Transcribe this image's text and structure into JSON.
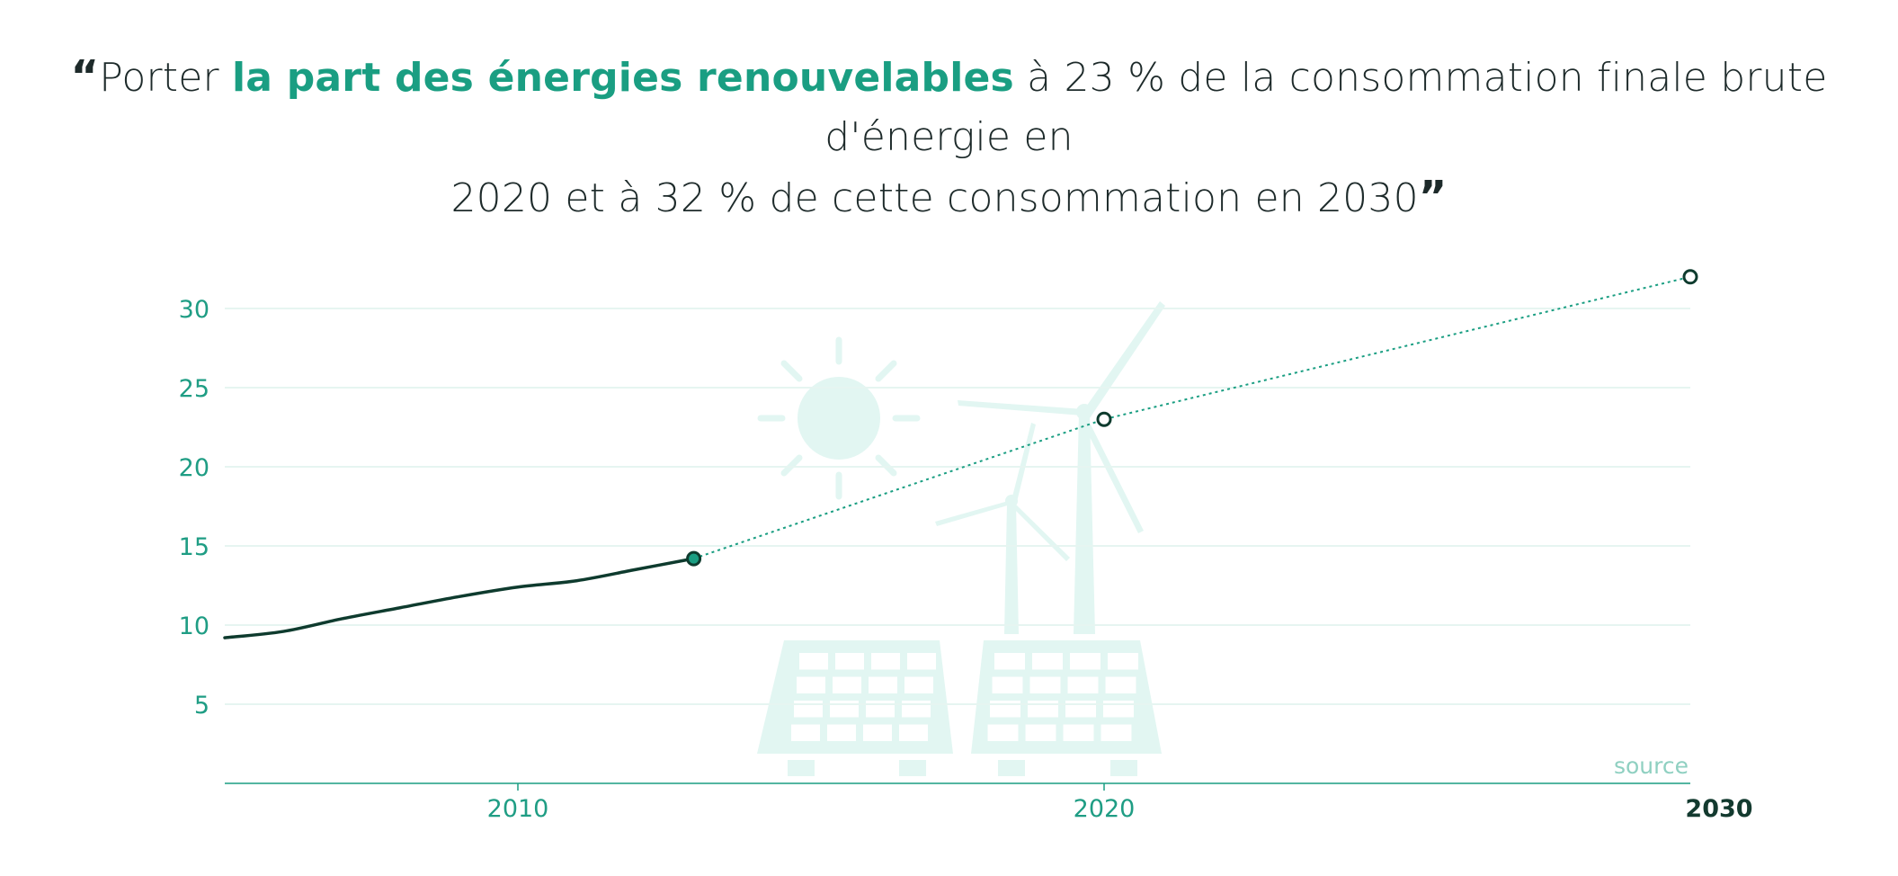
{
  "quote": {
    "open_mark": "“",
    "text_before": "Porter ",
    "highlight": "la part des énergies renouvelables",
    "text_after_line1": " à 23 % de la consommation finale brute d'énergie en",
    "text_line2": "2020 et à 32 % de cette consommation en 2030",
    "close_mark": "”"
  },
  "chart_data": {
    "type": "line",
    "title": "",
    "xlabel": "",
    "ylabel": "",
    "ylim": [
      0,
      32
    ],
    "xlim": [
      2005,
      2030
    ],
    "y_ticks": [
      5,
      10,
      15,
      20,
      25,
      30
    ],
    "x_ticks": [
      "2010",
      "2020",
      "2030"
    ],
    "grid": true,
    "series": [
      {
        "style": "solid",
        "x": [
          2005,
          2006,
          2007,
          2008,
          2009,
          2010,
          2011,
          2012,
          2013
        ],
        "values": [
          9.2,
          9.6,
          10.4,
          11.1,
          11.8,
          12.4,
          12.8,
          13.5,
          14.2
        ]
      },
      {
        "style": "dotted",
        "x": [
          2013,
          2020,
          2030
        ],
        "values": [
          14.2,
          23,
          32
        ]
      }
    ],
    "markers": [
      {
        "x": 2013,
        "y": 14.2,
        "filled": true
      },
      {
        "x": 2020,
        "y": 23,
        "filled": false
      },
      {
        "x": 2030,
        "y": 32,
        "filled": false
      }
    ],
    "source_label": "source"
  },
  "colors": {
    "line": "#0e3b2e",
    "accent": "#1a9e82",
    "grid": "#e6f5f1",
    "illustration": "#e2f6f2"
  }
}
